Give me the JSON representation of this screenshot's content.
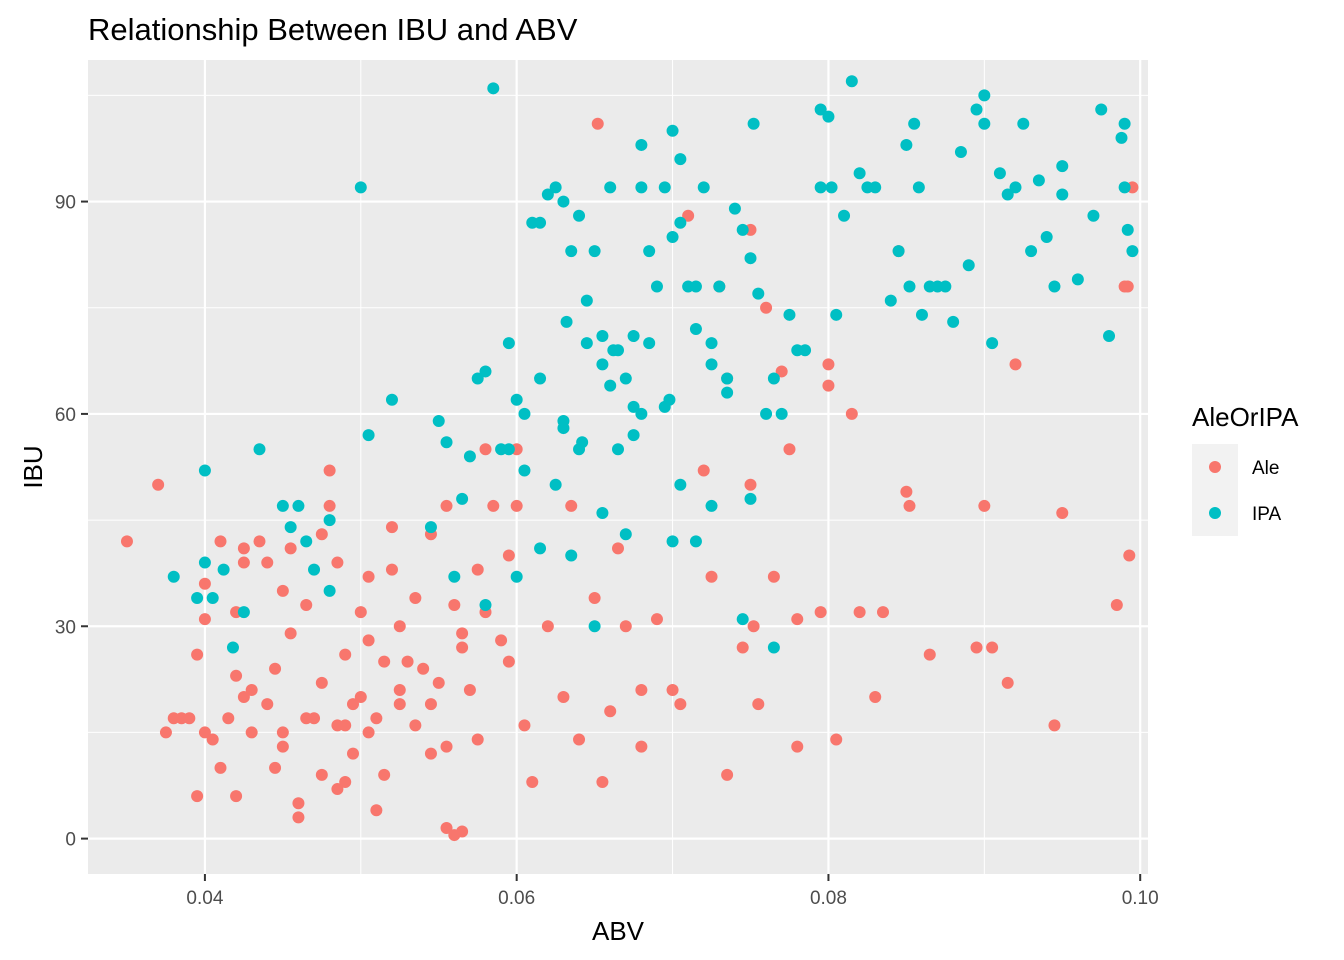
{
  "chart_data": {
    "type": "scatter",
    "title": "Relationship Between IBU and ABV",
    "xlabel": "ABV",
    "ylabel": "IBU",
    "xlim": [
      0.0325,
      0.1005
    ],
    "ylim": [
      -5,
      110
    ],
    "x_ticks": [
      0.04,
      0.06,
      0.08,
      0.1
    ],
    "x_tick_labels": [
      "0.04",
      "0.06",
      "0.08",
      "0.10"
    ],
    "y_ticks": [
      0,
      30,
      60,
      90
    ],
    "y_tick_labels": [
      "0",
      "30",
      "60",
      "90"
    ],
    "grid": true,
    "legend": {
      "title": "AleOrIPA",
      "placement": "right"
    },
    "series": [
      {
        "name": "Ale",
        "color": "#F8766D",
        "points": [
          [
            0.035,
            42
          ],
          [
            0.037,
            50
          ],
          [
            0.0375,
            15
          ],
          [
            0.038,
            17
          ],
          [
            0.0385,
            17
          ],
          [
            0.039,
            17
          ],
          [
            0.0395,
            6
          ],
          [
            0.0395,
            26
          ],
          [
            0.04,
            36
          ],
          [
            0.04,
            31
          ],
          [
            0.04,
            15
          ],
          [
            0.0405,
            14
          ],
          [
            0.041,
            10
          ],
          [
            0.041,
            42
          ],
          [
            0.042,
            32
          ],
          [
            0.0415,
            17
          ],
          [
            0.042,
            6
          ],
          [
            0.042,
            23
          ],
          [
            0.0425,
            39
          ],
          [
            0.0425,
            20
          ],
          [
            0.043,
            15
          ],
          [
            0.043,
            21
          ],
          [
            0.0435,
            42
          ],
          [
            0.044,
            39
          ],
          [
            0.044,
            19
          ],
          [
            0.0445,
            10
          ],
          [
            0.045,
            35
          ],
          [
            0.045,
            13
          ],
          [
            0.045,
            15
          ],
          [
            0.0455,
            41
          ],
          [
            0.0455,
            29
          ],
          [
            0.046,
            3
          ],
          [
            0.046,
            5
          ],
          [
            0.0465,
            33
          ],
          [
            0.047,
            17
          ],
          [
            0.0475,
            9
          ],
          [
            0.048,
            47
          ],
          [
            0.048,
            52
          ],
          [
            0.0485,
            39
          ],
          [
            0.049,
            26
          ],
          [
            0.049,
            16
          ],
          [
            0.0495,
            12
          ],
          [
            0.05,
            32
          ],
          [
            0.05,
            20
          ],
          [
            0.0505,
            15
          ],
          [
            0.051,
            17
          ],
          [
            0.0515,
            9
          ],
          [
            0.052,
            44
          ],
          [
            0.052,
            38
          ],
          [
            0.0525,
            30
          ],
          [
            0.053,
            25
          ],
          [
            0.0535,
            16
          ],
          [
            0.054,
            24
          ],
          [
            0.0545,
            12
          ],
          [
            0.055,
            22
          ],
          [
            0.0555,
            47
          ],
          [
            0.056,
            33
          ],
          [
            0.0565,
            27
          ],
          [
            0.057,
            21
          ],
          [
            0.0575,
            14
          ],
          [
            0.058,
            32
          ],
          [
            0.058,
            55
          ],
          [
            0.0585,
            47
          ],
          [
            0.059,
            28
          ],
          [
            0.0595,
            40
          ],
          [
            0.06,
            47
          ],
          [
            0.06,
            55
          ],
          [
            0.0605,
            16
          ],
          [
            0.061,
            8
          ],
          [
            0.062,
            30
          ],
          [
            0.063,
            20
          ],
          [
            0.0635,
            47
          ],
          [
            0.064,
            14
          ],
          [
            0.065,
            34
          ],
          [
            0.0655,
            8
          ],
          [
            0.066,
            18
          ],
          [
            0.0665,
            41
          ],
          [
            0.067,
            30
          ],
          [
            0.068,
            21
          ],
          [
            0.068,
            13
          ],
          [
            0.069,
            31
          ],
          [
            0.07,
            21
          ],
          [
            0.0705,
            19
          ],
          [
            0.071,
            88
          ],
          [
            0.072,
            52
          ],
          [
            0.0725,
            37
          ],
          [
            0.073,
            78
          ],
          [
            0.0735,
            65
          ],
          [
            0.0735,
            9
          ],
          [
            0.0745,
            27
          ],
          [
            0.075,
            86
          ],
          [
            0.075,
            50
          ],
          [
            0.0752,
            30
          ],
          [
            0.0755,
            19
          ],
          [
            0.076,
            75
          ],
          [
            0.0765,
            37
          ],
          [
            0.077,
            66
          ],
          [
            0.0775,
            55
          ],
          [
            0.078,
            13
          ],
          [
            0.078,
            31
          ],
          [
            0.0795,
            32
          ],
          [
            0.08,
            67
          ],
          [
            0.08,
            64
          ],
          [
            0.0805,
            14
          ],
          [
            0.0815,
            60
          ],
          [
            0.082,
            32
          ],
          [
            0.083,
            20
          ],
          [
            0.0835,
            32
          ],
          [
            0.0845,
            83
          ],
          [
            0.085,
            49
          ],
          [
            0.0852,
            47
          ],
          [
            0.0865,
            26
          ],
          [
            0.0895,
            27
          ],
          [
            0.09,
            47
          ],
          [
            0.0905,
            27
          ],
          [
            0.0915,
            22
          ],
          [
            0.092,
            67
          ],
          [
            0.0945,
            16
          ],
          [
            0.095,
            46
          ],
          [
            0.0985,
            33
          ],
          [
            0.099,
            78
          ],
          [
            0.0992,
            78
          ],
          [
            0.0993,
            40
          ],
          [
            0.0995,
            92
          ],
          [
            0.0652,
            101
          ],
          [
            0.056,
            0.5
          ],
          [
            0.0565,
            1
          ],
          [
            0.0555,
            1.5
          ],
          [
            0.049,
            8
          ],
          [
            0.051,
            4
          ],
          [
            0.0425,
            41
          ],
          [
            0.0445,
            24
          ],
          [
            0.0475,
            22
          ],
          [
            0.0505,
            28
          ],
          [
            0.0535,
            34
          ],
          [
            0.0545,
            19
          ],
          [
            0.0515,
            25
          ],
          [
            0.0495,
            19
          ],
          [
            0.0525,
            21
          ],
          [
            0.0545,
            43
          ],
          [
            0.0565,
            29
          ],
          [
            0.0575,
            38
          ],
          [
            0.0595,
            25
          ],
          [
            0.0465,
            17
          ],
          [
            0.0485,
            7
          ],
          [
            0.0525,
            19
          ],
          [
            0.0555,
            13
          ],
          [
            0.0485,
            16
          ],
          [
            0.0505,
            37
          ],
          [
            0.0475,
            43
          ]
        ]
      },
      {
        "name": "IPA",
        "color": "#00BFC4",
        "points": [
          [
            0.038,
            37
          ],
          [
            0.0395,
            34
          ],
          [
            0.04,
            39
          ],
          [
            0.04,
            52
          ],
          [
            0.0405,
            34
          ],
          [
            0.0412,
            38
          ],
          [
            0.0418,
            27
          ],
          [
            0.0425,
            32
          ],
          [
            0.0435,
            55
          ],
          [
            0.045,
            47
          ],
          [
            0.0455,
            44
          ],
          [
            0.046,
            47
          ],
          [
            0.0465,
            42
          ],
          [
            0.047,
            38
          ],
          [
            0.048,
            45
          ],
          [
            0.048,
            35
          ],
          [
            0.05,
            92
          ],
          [
            0.0505,
            57
          ],
          [
            0.052,
            62
          ],
          [
            0.0545,
            44
          ],
          [
            0.055,
            59
          ],
          [
            0.0555,
            56
          ],
          [
            0.0565,
            48
          ],
          [
            0.057,
            54
          ],
          [
            0.0575,
            65
          ],
          [
            0.058,
            66
          ],
          [
            0.0585,
            106
          ],
          [
            0.059,
            55
          ],
          [
            0.0595,
            70
          ],
          [
            0.06,
            62
          ],
          [
            0.06,
            37
          ],
          [
            0.0605,
            60
          ],
          [
            0.061,
            87
          ],
          [
            0.0615,
            87
          ],
          [
            0.062,
            91
          ],
          [
            0.0625,
            92
          ],
          [
            0.063,
            90
          ],
          [
            0.063,
            58
          ],
          [
            0.0635,
            83
          ],
          [
            0.064,
            88
          ],
          [
            0.0645,
            76
          ],
          [
            0.065,
            83
          ],
          [
            0.0655,
            67
          ],
          [
            0.066,
            92
          ],
          [
            0.0665,
            69
          ],
          [
            0.067,
            65
          ],
          [
            0.0675,
            61
          ],
          [
            0.068,
            98
          ],
          [
            0.068,
            92
          ],
          [
            0.0685,
            83
          ],
          [
            0.069,
            78
          ],
          [
            0.0695,
            92
          ],
          [
            0.07,
            100
          ],
          [
            0.07,
            85
          ],
          [
            0.0705,
            96
          ],
          [
            0.0705,
            87
          ],
          [
            0.071,
            78
          ],
          [
            0.0715,
            72
          ],
          [
            0.072,
            92
          ],
          [
            0.0725,
            67
          ],
          [
            0.073,
            78
          ],
          [
            0.0735,
            63
          ],
          [
            0.074,
            89
          ],
          [
            0.0745,
            86
          ],
          [
            0.075,
            82
          ],
          [
            0.0752,
            101
          ],
          [
            0.0755,
            77
          ],
          [
            0.076,
            60
          ],
          [
            0.0765,
            65
          ],
          [
            0.077,
            60
          ],
          [
            0.0775,
            74
          ],
          [
            0.078,
            69
          ],
          [
            0.0795,
            103
          ],
          [
            0.08,
            102
          ],
          [
            0.0795,
            92
          ],
          [
            0.0802,
            92
          ],
          [
            0.0805,
            74
          ],
          [
            0.081,
            88
          ],
          [
            0.0815,
            107
          ],
          [
            0.082,
            94
          ],
          [
            0.0825,
            92
          ],
          [
            0.083,
            92
          ],
          [
            0.084,
            76
          ],
          [
            0.0845,
            83
          ],
          [
            0.085,
            98
          ],
          [
            0.0852,
            78
          ],
          [
            0.0855,
            101
          ],
          [
            0.0858,
            92
          ],
          [
            0.086,
            74
          ],
          [
            0.0865,
            78
          ],
          [
            0.087,
            78
          ],
          [
            0.0875,
            78
          ],
          [
            0.088,
            73
          ],
          [
            0.0885,
            97
          ],
          [
            0.089,
            81
          ],
          [
            0.0895,
            103
          ],
          [
            0.09,
            105
          ],
          [
            0.09,
            101
          ],
          [
            0.0905,
            70
          ],
          [
            0.091,
            94
          ],
          [
            0.0915,
            91
          ],
          [
            0.092,
            92
          ],
          [
            0.0925,
            101
          ],
          [
            0.093,
            83
          ],
          [
            0.0935,
            93
          ],
          [
            0.094,
            85
          ],
          [
            0.0945,
            78
          ],
          [
            0.095,
            95
          ],
          [
            0.095,
            91
          ],
          [
            0.096,
            79
          ],
          [
            0.097,
            88
          ],
          [
            0.0975,
            103
          ],
          [
            0.098,
            71
          ],
          [
            0.0988,
            99
          ],
          [
            0.099,
            101
          ],
          [
            0.099,
            92
          ],
          [
            0.0992,
            86
          ],
          [
            0.0995,
            83
          ],
          [
            0.0655,
            46
          ],
          [
            0.067,
            43
          ],
          [
            0.07,
            42
          ],
          [
            0.0705,
            50
          ],
          [
            0.0715,
            42
          ],
          [
            0.0725,
            47
          ],
          [
            0.075,
            48
          ],
          [
            0.0765,
            27
          ],
          [
            0.0745,
            31
          ],
          [
            0.065,
            30
          ],
          [
            0.0615,
            41
          ],
          [
            0.0635,
            40
          ],
          [
            0.058,
            33
          ],
          [
            0.056,
            37
          ],
          [
            0.0625,
            50
          ],
          [
            0.068,
            60
          ],
          [
            0.0615,
            65
          ],
          [
            0.064,
            55
          ],
          [
            0.066,
            64
          ],
          [
            0.0675,
            57
          ],
          [
            0.0695,
            61
          ],
          [
            0.0685,
            70
          ],
          [
            0.0645,
            70
          ],
          [
            0.0632,
            73
          ],
          [
            0.0595,
            55
          ],
          [
            0.0605,
            52
          ],
          [
            0.0665,
            55
          ],
          [
            0.0735,
            65
          ],
          [
            0.0698,
            62
          ],
          [
            0.0655,
            71
          ],
          [
            0.0662,
            69
          ],
          [
            0.0725,
            70
          ],
          [
            0.0785,
            69
          ],
          [
            0.0715,
            78
          ],
          [
            0.063,
            59
          ],
          [
            0.0642,
            56
          ],
          [
            0.0675,
            71
          ]
        ]
      }
    ]
  }
}
